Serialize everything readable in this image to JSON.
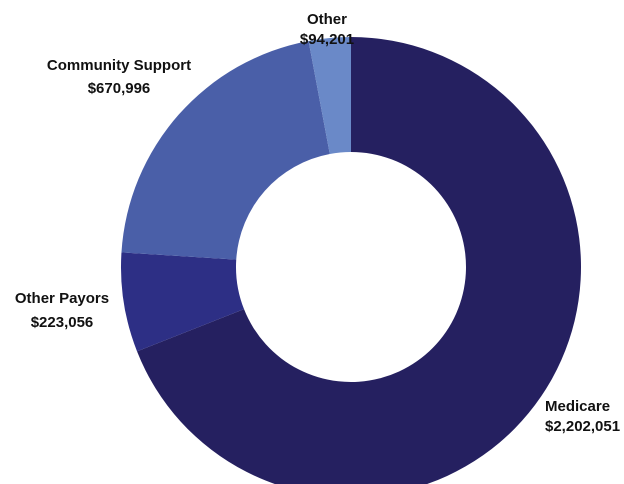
{
  "chart_data": {
    "type": "pie",
    "variant": "donut",
    "slices": [
      {
        "label": "Medicare",
        "value": 2202051,
        "display_value": "$2,202,051",
        "color": "#252060"
      },
      {
        "label": "Other Payors",
        "value": 223056,
        "display_value": "$223,056",
        "color": "#2d2f85"
      },
      {
        "label": "Community Support",
        "value": 670996,
        "display_value": "$670,996",
        "color": "#4a5fa8"
      },
      {
        "label": "Other",
        "value": 94201,
        "display_value": "$94,201",
        "color": "#6a89c8"
      }
    ]
  }
}
